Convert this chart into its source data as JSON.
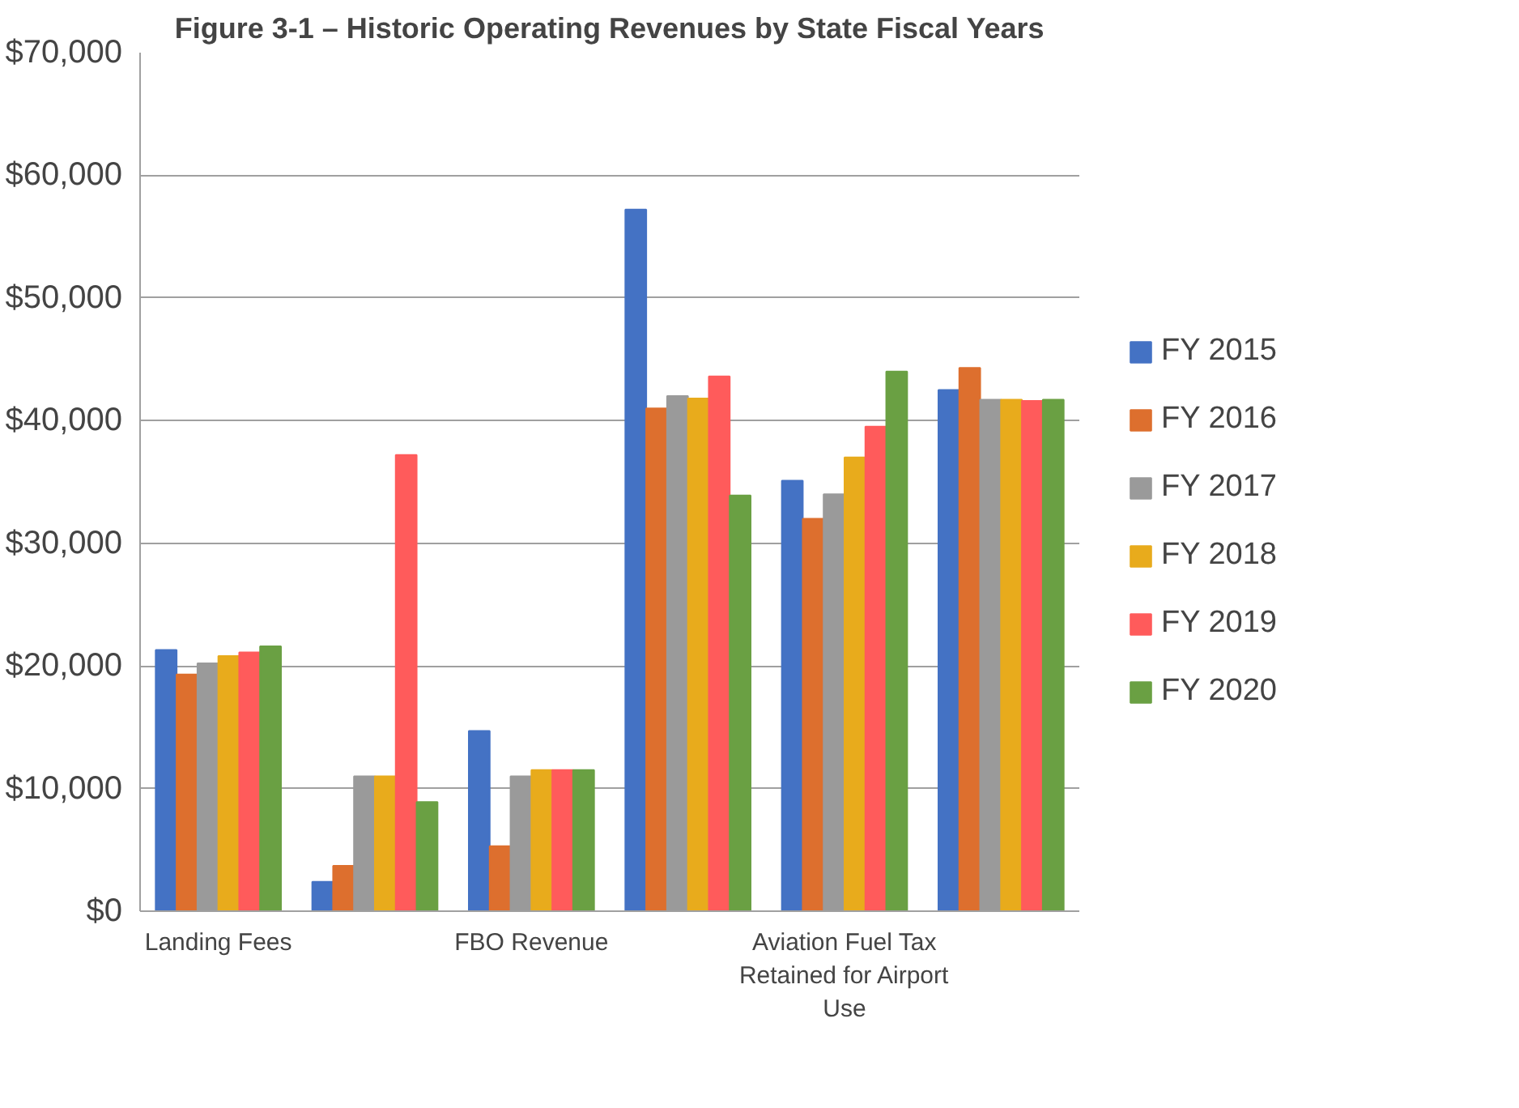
{
  "chart_data": {
    "type": "bar",
    "title": "Figure 3-1 – Historic Operating Revenues by State Fiscal Years",
    "categories": [
      "Landing Fees",
      null,
      "FBO Revenue",
      null,
      "Aviation Fuel Tax Retained for Airport Use",
      null
    ],
    "series": [
      {
        "name": "FY 2015",
        "color": "#4472c4",
        "values": [
          21300,
          2400,
          14700,
          57200,
          35100,
          42500
        ]
      },
      {
        "name": "FY 2016",
        "color": "#dd6f2e",
        "values": [
          19300,
          3700,
          5300,
          41000,
          32000,
          44300
        ]
      },
      {
        "name": "FY 2017",
        "color": "#9a9a9a",
        "values": [
          20200,
          11000,
          11000,
          42000,
          34000,
          41700
        ]
      },
      {
        "name": "FY 2018",
        "color": "#e8ab1c",
        "values": [
          20800,
          11000,
          11500,
          41800,
          37000,
          41700
        ]
      },
      {
        "name": "FY 2019",
        "color": "#ff5b5b",
        "values": [
          21100,
          37200,
          11500,
          43600,
          39500,
          41600
        ]
      },
      {
        "name": "FY 2020",
        "color": "#6aa043",
        "values": [
          21600,
          8900,
          11500,
          33900,
          44000,
          41700
        ]
      }
    ],
    "ylim": [
      0,
      70000
    ],
    "yticks": [
      {
        "value": 0,
        "label": "$0"
      },
      {
        "value": 10000,
        "label": "$10,000"
      },
      {
        "value": 20000,
        "label": "$20,000"
      },
      {
        "value": 30000,
        "label": "$30,000"
      },
      {
        "value": 40000,
        "label": "$40,000"
      },
      {
        "value": 50000,
        "label": "$50,000"
      },
      {
        "value": 60000,
        "label": "$60,000"
      },
      {
        "value": 70000,
        "label": "$70,000"
      }
    ],
    "grid": "y",
    "legend": "right"
  }
}
